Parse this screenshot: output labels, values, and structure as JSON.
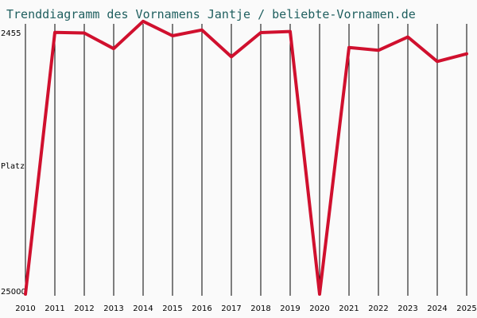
{
  "chart_data": {
    "type": "line",
    "title": "Trenddiagramm des Vornamens Jantje / beliebte-Vornamen.de",
    "ylabel": "Platz",
    "y_inverted": true,
    "ylim": [
      25000,
      2455
    ],
    "y_ticks": [
      "2455",
      "25000"
    ],
    "x": [
      "2010",
      "2011",
      "2012",
      "2013",
      "2014",
      "2015",
      "2016",
      "2017",
      "2018",
      "2019",
      "2020",
      "2021",
      "2022",
      "2023",
      "2024",
      "2025"
    ],
    "series": [
      {
        "values": [
          25000,
          2500,
          2560,
          3900,
          1550,
          2800,
          2300,
          4600,
          2520,
          2430,
          25000,
          3800,
          4050,
          2900,
          5000,
          4350
        ]
      }
    ],
    "grid": "vertical",
    "colors": {
      "series": "#d0102e",
      "title": "#1f5f5f",
      "background": "#fafafa"
    }
  }
}
